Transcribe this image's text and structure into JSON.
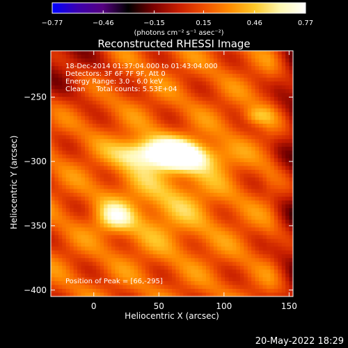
{
  "chart_data": {
    "type": "heatmap",
    "title": "Reconstructed RHESSI Image",
    "xlabel": "Heliocentric X (arcsec)",
    "ylabel": "Heliocentric Y (arcsec)",
    "xlim": [
      -33,
      153
    ],
    "ylim": [
      -405,
      -214
    ],
    "xticks": [
      0,
      50,
      100,
      150
    ],
    "xtick_labels": [
      "0",
      "50",
      "100",
      "150"
    ],
    "yticks": [
      -250,
      -300,
      -350,
      -400
    ],
    "ytick_labels": [
      "−250",
      "−300",
      "−350",
      "−400"
    ],
    "colorbar": {
      "range": [
        -0.77,
        0.77
      ],
      "ticks": [
        -0.77,
        -0.46,
        -0.15,
        0.15,
        0.46,
        0.77
      ],
      "tick_labels": [
        "−0.77",
        "−0.46",
        "−0.15",
        "0.15",
        "0.46",
        "0.77"
      ],
      "unit_label": "(photons cm⁻² s⁻¹ asec⁻²)",
      "colormap": [
        "#0000ff",
        "#3c00b0",
        "#550080",
        "#000000",
        "#7a0000",
        "#c81e00",
        "#f05000",
        "#ff8c00",
        "#ffc828",
        "#fff8b0",
        "#ffffff"
      ]
    },
    "annotations": [
      "18-Dec-2014 01:37:04.000 to 01:43:04.000",
      "Detectors: 3F 6F 7F 9F, Att 0",
      "Energy Range: 3.0 - 6.0 keV",
      "Clean     Total counts: 5.53E+04",
      "Position of Peak = [66,-295]"
    ],
    "peak": [
      66,
      -295
    ],
    "sources": [
      {
        "x": 63,
        "y": -295,
        "peak": 0.77,
        "sx": 13,
        "sy": 8
      },
      {
        "x": 37,
        "y": -293,
        "peak": 0.55,
        "sx": 15,
        "sy": 8
      },
      {
        "x": 85,
        "y": -297,
        "peak": 0.35,
        "sx": 15,
        "sy": 8
      },
      {
        "x": 16,
        "y": -344,
        "peak": 0.45,
        "sx": 10,
        "sy": 8
      },
      {
        "x": 55,
        "y": -330,
        "peak": 0.28,
        "sx": 30,
        "sy": 28
      },
      {
        "x": 125,
        "y": -265,
        "peak": 0.3,
        "sx": 8,
        "sy": 5
      }
    ],
    "background": 0.18
  },
  "footer": {
    "date": "20-May-2022 18:29"
  }
}
